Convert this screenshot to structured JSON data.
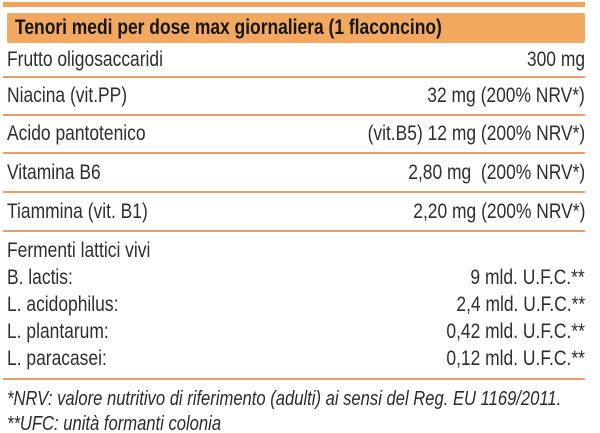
{
  "table": {
    "title": "Tenori medi per dose max giornaliera (1 flaconcino)",
    "rows": [
      {
        "label": "Frutto oligosaccaridi",
        "value": "300 mg"
      },
      {
        "label": "Niacina (vit.PP)",
        "value": "32 mg (200% NRV*)"
      },
      {
        "label": "Acido pantotenico",
        "value": "(vit.B5) 12 mg (200% NRV*)"
      },
      {
        "label": "Vitamina B6",
        "value": "2,80 mg  (200% NRV*)"
      },
      {
        "label": "Tiammina (vit. B1)",
        "value": "2,20 mg (200% NRV*)"
      }
    ],
    "ferments": {
      "heading": "Fermenti lattici vivi",
      "items": [
        {
          "label": "B. lactis:",
          "value": "9 mld. U.F.C.**"
        },
        {
          "label": "L. acidophilus:",
          "value": "2,4 mld. U.F.C.**"
        },
        {
          "label": "L. plantarum:",
          "value": "0,42 mld. U.F.C.**"
        },
        {
          "label": "L. paracasei:",
          "value": "0,12 mld. U.F.C.**"
        }
      ]
    },
    "footnotes": [
      "*NRV: valore nutritivo di riferimento (adulti) ai sensi del Reg. EU 1169/2011.",
      "**UFC: unità formanti colonia"
    ],
    "colors": {
      "header_bg": "#f2a85e",
      "top_rule": "#f3a356",
      "separator": "#eb9d66",
      "text": "#2e2e2e"
    }
  }
}
